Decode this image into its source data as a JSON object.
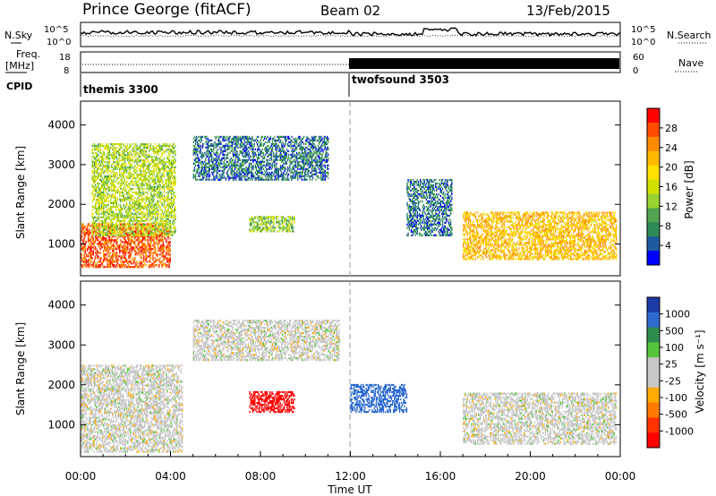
{
  "header": {
    "station": "Prince George (fitACF)",
    "beam": "Beam 02",
    "date": "13/Feb/2015"
  },
  "nsky_panel": {
    "left_label": "N.Sky",
    "right_label": "N.Search",
    "left_ticks": [
      "10^5",
      "10^0"
    ],
    "right_ticks": [
      "10^5",
      "10^0"
    ]
  },
  "freq_panel": {
    "left_label_1": "Freq.",
    "left_label_2": "[MHz]",
    "right_label": "Nave",
    "left_ticks": [
      "18",
      "8"
    ],
    "right_ticks": [
      "60",
      "0"
    ]
  },
  "cpid": {
    "label": "CPID",
    "modes": [
      {
        "name": "themis 3300",
        "start_hour": 0
      },
      {
        "name": "twofsound 3503",
        "start_hour": 12
      }
    ]
  },
  "colorbar_power": {
    "title": "Power [dB]",
    "ticks": [
      "28",
      "24",
      "20",
      "16",
      "12",
      "8",
      "4"
    ],
    "colors": [
      "#ff0000",
      "#ff4a00",
      "#ff8c00",
      "#ffbb00",
      "#ffe000",
      "#d2e000",
      "#9ad230",
      "#52a550",
      "#2e8b57",
      "#1e5aa0",
      "#0000ff"
    ]
  },
  "colorbar_velocity": {
    "title": "Velocity [m s⁻¹]",
    "ticks": [
      "1000",
      "500",
      "100",
      "25",
      "-25",
      "-100",
      "-500",
      "-1000"
    ],
    "colors": [
      "#1e3ca8",
      "#2e6bd0",
      "#2f8c4f",
      "#56c43c",
      "#c8c8c8",
      "#c8c8c8",
      "#ffaa00",
      "#ff7a00",
      "#ff3300",
      "#ff0000"
    ]
  },
  "axes": {
    "ylabel": "Slant Range [km]",
    "yticks": [
      "4000",
      "3000",
      "2000",
      "1000"
    ],
    "xlabel": "Time UT",
    "xticks": [
      "00:00",
      "04:00",
      "08:00",
      "12:00",
      "16:00",
      "20:00",
      "00:00"
    ]
  },
  "chart_data": [
    {
      "type": "heatmap",
      "name": "power",
      "x_range_hours": [
        0,
        24
      ],
      "y_range_km": [
        200,
        4600
      ],
      "value_range_db": [
        0,
        32
      ],
      "blobs": [
        {
          "t0": 0.0,
          "t1": 4.0,
          "r0": 400,
          "r1": 1500,
          "value": 28
        },
        {
          "t0": 0.5,
          "t1": 4.2,
          "r0": 1200,
          "r1": 3500,
          "value": 14
        },
        {
          "t0": 5.0,
          "t1": 11.0,
          "r0": 2600,
          "r1": 3700,
          "value": 5
        },
        {
          "t0": 7.5,
          "t1": 9.5,
          "r0": 1300,
          "r1": 1700,
          "value": 12
        },
        {
          "t0": 14.5,
          "t1": 16.5,
          "r0": 1200,
          "r1": 2600,
          "value": 5
        },
        {
          "t0": 17.0,
          "t1": 23.8,
          "r0": 600,
          "r1": 1800,
          "value": 22
        }
      ]
    },
    {
      "type": "heatmap",
      "name": "velocity",
      "x_range_hours": [
        0,
        24
      ],
      "y_range_km": [
        200,
        4600
      ],
      "value_range_ms": [
        -1000,
        1000
      ],
      "blobs": [
        {
          "t0": 0.0,
          "t1": 4.5,
          "r0": 300,
          "r1": 2500,
          "value": 0
        },
        {
          "t0": 5.0,
          "t1": 11.5,
          "r0": 2600,
          "r1": 3600,
          "value": 0
        },
        {
          "t0": 7.5,
          "t1": 9.5,
          "r0": 1300,
          "r1": 1800,
          "value": -700
        },
        {
          "t0": 12.0,
          "t1": 14.5,
          "r0": 1300,
          "r1": 2000,
          "value": 200
        },
        {
          "t0": 17.0,
          "t1": 23.8,
          "r0": 500,
          "r1": 1800,
          "value": 0
        }
      ]
    }
  ]
}
